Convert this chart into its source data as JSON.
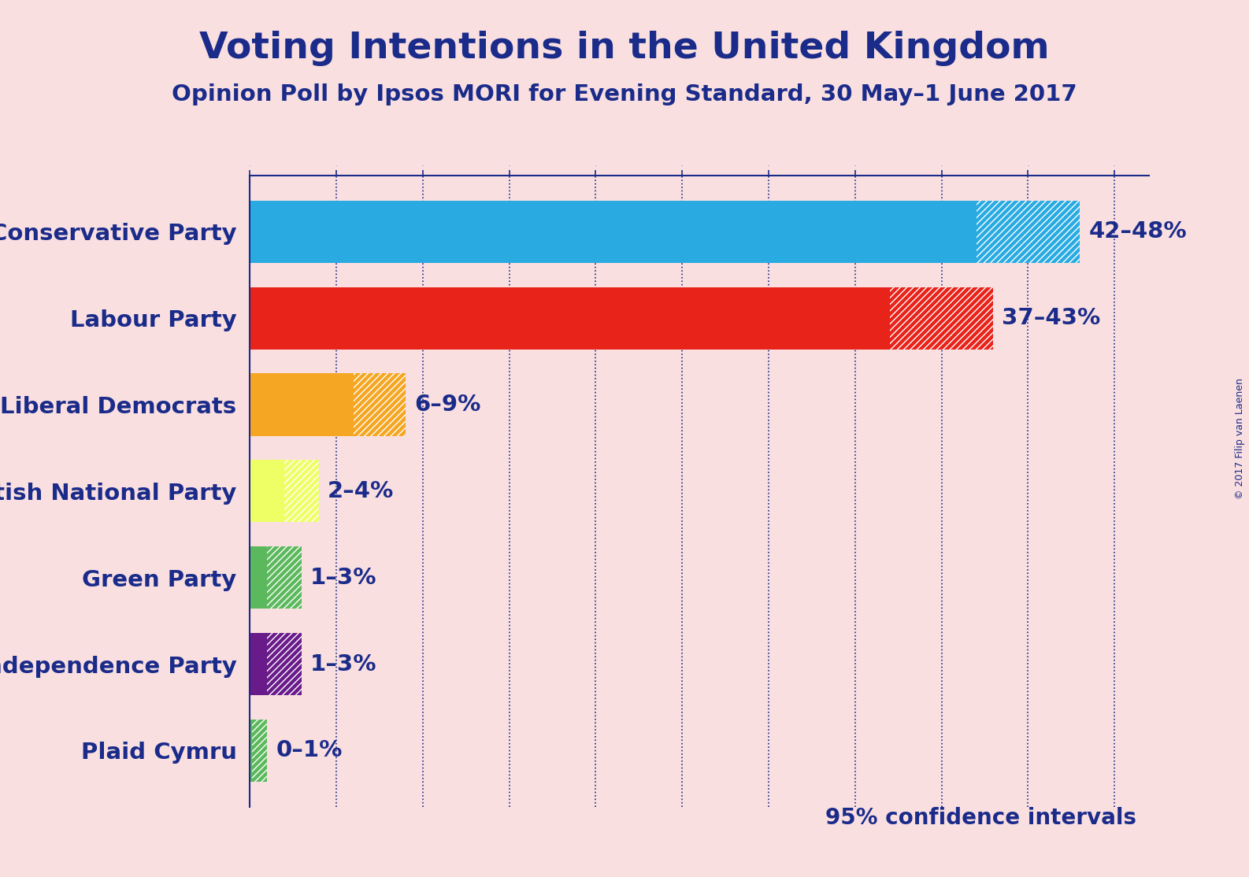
{
  "title": "Voting Intentions in the United Kingdom",
  "subtitle": "Opinion Poll by Ipsos MORI for Evening Standard, 30 May–1 June 2017",
  "copyright": "© 2017 Filip van Laenen",
  "background_color": "#f9dfe0",
  "title_color": "#1a2b8a",
  "subtitle_color": "#1a2b8a",
  "label_color": "#1a2b8a",
  "parties": [
    "Conservative Party",
    "Labour Party",
    "Liberal Democrats",
    "Scottish National Party",
    "Green Party",
    "UK Independence Party",
    "Plaid Cymru"
  ],
  "low_values": [
    42,
    37,
    6,
    2,
    1,
    1,
    0.15
  ],
  "high_values": [
    48,
    43,
    9,
    4,
    3,
    3,
    1
  ],
  "colors": [
    "#29ABE2",
    "#E8231A",
    "#F5A623",
    "#EEFF66",
    "#5CB85C",
    "#6A1B8A",
    "#5CB85C"
  ],
  "labels": [
    "42–48%",
    "37–43%",
    "6–9%",
    "2–4%",
    "1–3%",
    "1–3%",
    "0–1%"
  ],
  "xlim": [
    0,
    52
  ],
  "confidence_label": "95% confidence intervals",
  "gridline_color": "#1a2b8a",
  "axis_color": "#1a2b8a"
}
